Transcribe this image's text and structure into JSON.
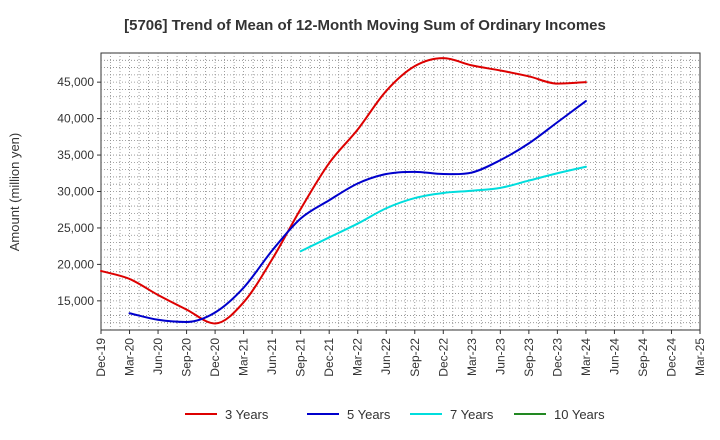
{
  "chart_data": {
    "type": "line",
    "title": "[5706]  Trend of Mean of 12-Month Moving Sum of Ordinary Incomes",
    "xlabel": "",
    "ylabel": "Amount (million yen)",
    "ylim": [
      11000,
      49000
    ],
    "yticks": [
      15000,
      20000,
      25000,
      30000,
      35000,
      40000,
      45000
    ],
    "ytick_labels": [
      "15,000",
      "20,000",
      "25,000",
      "30,000",
      "35,000",
      "40,000",
      "45,000"
    ],
    "x_categories": [
      "Dec-19",
      "Mar-20",
      "Jun-20",
      "Sep-20",
      "Dec-20",
      "Mar-21",
      "Jun-21",
      "Sep-21",
      "Dec-21",
      "Mar-22",
      "Jun-22",
      "Sep-22",
      "Dec-22",
      "Mar-23",
      "Jun-23",
      "Sep-23",
      "Dec-23",
      "Mar-24",
      "Jun-24",
      "Sep-24",
      "Dec-24",
      "Mar-25"
    ],
    "grid": true,
    "legend_position": "bottom",
    "series": [
      {
        "name": "3 Years",
        "color": "#dd0000",
        "values": [
          19100,
          18000,
          15800,
          13800,
          11900,
          14800,
          20700,
          27600,
          33900,
          38500,
          43800,
          47200,
          48300,
          47300,
          46600,
          45800,
          44800,
          45000
        ],
        "start_index": 0
      },
      {
        "name": "5 Years",
        "color": "#0000cc",
        "values": [
          13300,
          12400,
          12100,
          13400,
          16800,
          21900,
          26300,
          28800,
          31100,
          32400,
          32700,
          32400,
          32600,
          34300,
          36600,
          39500,
          42400
        ],
        "start_index": 1
      },
      {
        "name": "7 Years",
        "color": "#00dddd",
        "values": [
          21800,
          23700,
          25600,
          27700,
          29100,
          29800,
          30100,
          30500,
          31500,
          32500,
          33400
        ],
        "start_index": 7
      },
      {
        "name": "10 Years",
        "color": "#228822",
        "values": [],
        "start_index": 0
      }
    ]
  }
}
